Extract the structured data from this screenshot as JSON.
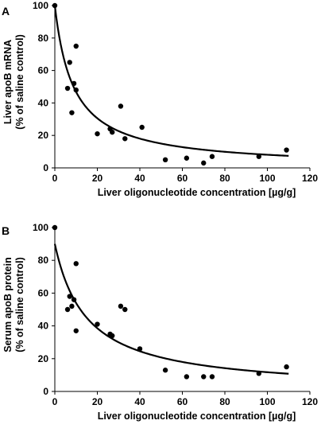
{
  "chart_data": [
    {
      "type": "scatter",
      "panel_label": "A",
      "xlabel": "Liver oligonucleotide concentration [µg/g]",
      "ylabel": [
        "Liver apoB mRNA",
        "(% of saline control)"
      ],
      "xlim": [
        0,
        120
      ],
      "ylim": [
        0,
        100
      ],
      "xticks": [
        0,
        20,
        40,
        60,
        80,
        100,
        120
      ],
      "yticks": [
        0,
        20,
        40,
        60,
        80,
        100
      ],
      "grid": false,
      "points": [
        {
          "x": 0,
          "y": 100
        },
        {
          "x": 6,
          "y": 49
        },
        {
          "x": 7,
          "y": 65
        },
        {
          "x": 8,
          "y": 34
        },
        {
          "x": 9,
          "y": 52
        },
        {
          "x": 10,
          "y": 75
        },
        {
          "x": 10,
          "y": 48
        },
        {
          "x": 20,
          "y": 21
        },
        {
          "x": 26,
          "y": 24
        },
        {
          "x": 27,
          "y": 22
        },
        {
          "x": 31,
          "y": 38
        },
        {
          "x": 33,
          "y": 18
        },
        {
          "x": 41,
          "y": 25
        },
        {
          "x": 52,
          "y": 5
        },
        {
          "x": 62,
          "y": 6
        },
        {
          "x": 70,
          "y": 3
        },
        {
          "x": 74,
          "y": 7
        },
        {
          "x": 96,
          "y": 7
        },
        {
          "x": 109,
          "y": 11
        }
      ],
      "fit_curve": {
        "model": "y = 100 * k / (k + x)",
        "k": 8.8,
        "x_range": [
          0,
          110
        ]
      }
    },
    {
      "type": "scatter",
      "panel_label": "B",
      "xlabel": "Liver oligonucleotide concentration [µg/g]",
      "ylabel": [
        "Serum apoB protein",
        "(% of saline control)"
      ],
      "xlim": [
        0,
        120
      ],
      "ylim": [
        0,
        100
      ],
      "xticks": [
        0,
        20,
        40,
        60,
        80,
        100,
        120
      ],
      "yticks": [
        0,
        20,
        40,
        60,
        80,
        100
      ],
      "grid": false,
      "points": [
        {
          "x": 0,
          "y": 100
        },
        {
          "x": 6,
          "y": 50
        },
        {
          "x": 7,
          "y": 58
        },
        {
          "x": 8,
          "y": 52
        },
        {
          "x": 9,
          "y": 56
        },
        {
          "x": 10,
          "y": 78
        },
        {
          "x": 10,
          "y": 37
        },
        {
          "x": 20,
          "y": 41
        },
        {
          "x": 26,
          "y": 35
        },
        {
          "x": 27,
          "y": 34
        },
        {
          "x": 31,
          "y": 52
        },
        {
          "x": 33,
          "y": 50
        },
        {
          "x": 40,
          "y": 26
        },
        {
          "x": 52,
          "y": 13
        },
        {
          "x": 62,
          "y": 9
        },
        {
          "x": 70,
          "y": 9
        },
        {
          "x": 74,
          "y": 9
        },
        {
          "x": 96,
          "y": 11
        },
        {
          "x": 109,
          "y": 15
        }
      ],
      "fit_curve": {
        "model": "y = 90 * k / (k + x)",
        "k": 15,
        "x_range": [
          0,
          110
        ]
      }
    }
  ]
}
